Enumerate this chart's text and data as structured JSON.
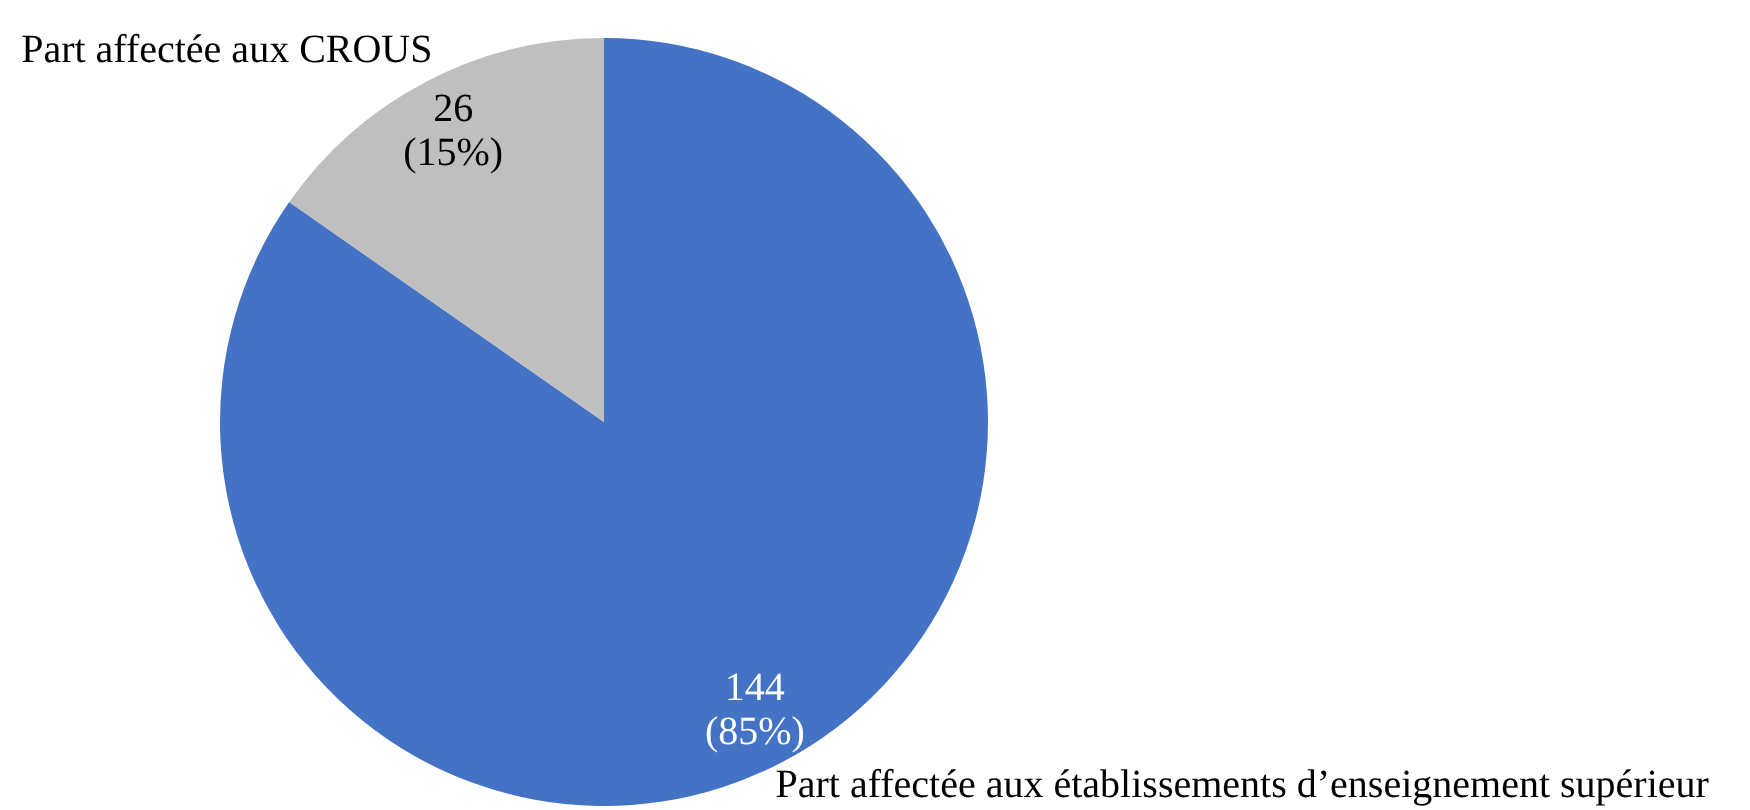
{
  "chart_data": {
    "type": "pie",
    "categories": [
      "Part affectée aux établissements d’enseignement supérieur",
      "Part affectée aux CROUS"
    ],
    "values": [
      144,
      26
    ],
    "colors": [
      "#4472c4",
      "#bfbfbf"
    ],
    "value_labels": [
      "144\n(85%)",
      "26\n(15%)"
    ],
    "legend": false
  }
}
